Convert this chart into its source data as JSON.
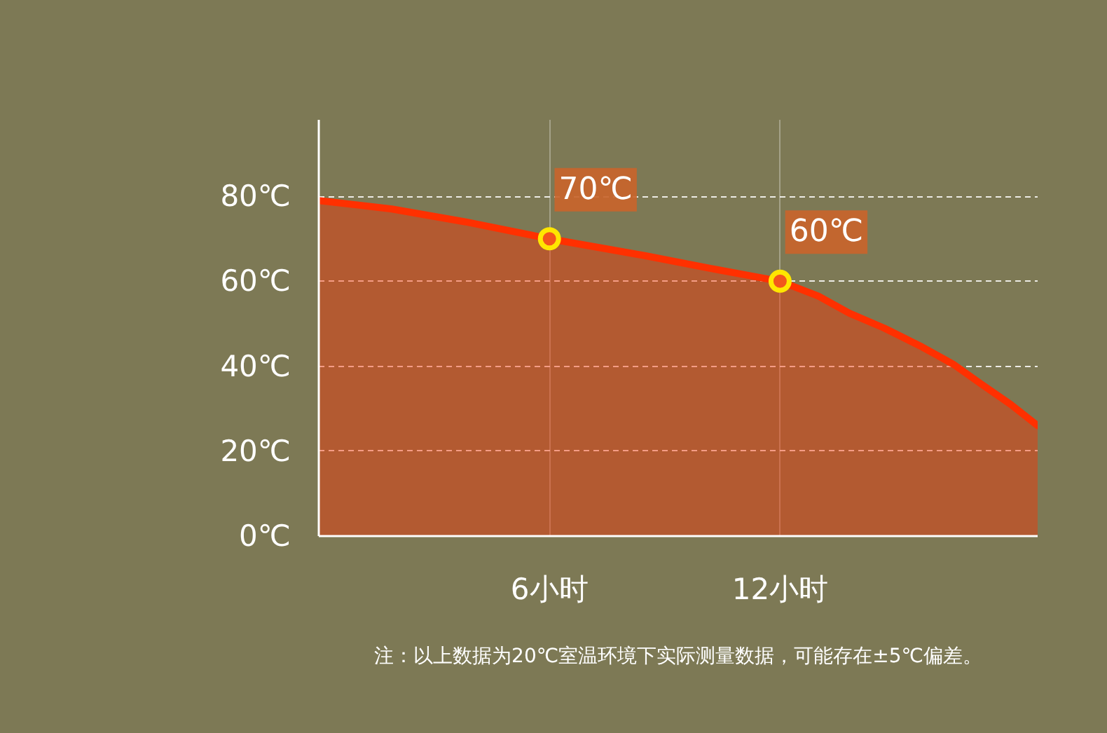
{
  "chart_data": {
    "type": "area",
    "xlim": [
      0,
      18.7
    ],
    "xticks": [
      {
        "value": 6,
        "label": "6小时"
      },
      {
        "value": 12,
        "label": "12小时"
      }
    ],
    "ylim": [
      0,
      98
    ],
    "yticks": [
      {
        "value": 0,
        "label": "0℃"
      },
      {
        "value": 20,
        "label": "20℃"
      },
      {
        "value": 40,
        "label": "40℃"
      },
      {
        "value": 60,
        "label": "60℃"
      },
      {
        "value": 80,
        "label": "80℃"
      }
    ],
    "grid": true,
    "series": [
      {
        "color": "#ff3000",
        "x": [
          0,
          1.9,
          3.8,
          6,
          8.5,
          10.2,
          12,
          13,
          13.8,
          14.7,
          15.7,
          16.5,
          17.2,
          18,
          18.7
        ],
        "values": [
          79,
          77,
          74,
          70,
          66,
          63,
          60,
          56.5,
          52.5,
          49,
          44.5,
          40.5,
          36,
          31,
          26
        ]
      },
      {
        "type": "scatter",
        "color": "#ffe600",
        "marker": "circle",
        "x": [
          6,
          12
        ],
        "values": [
          70,
          60
        ]
      }
    ],
    "annotations": [
      {
        "text": "70℃",
        "x": 6,
        "y": 70
      },
      {
        "text": "60℃",
        "x": 12,
        "y": 60
      },
      "注：以上数据为20℃室温环境下实际测量数据，可能存在±5℃偏差。"
    ]
  }
}
